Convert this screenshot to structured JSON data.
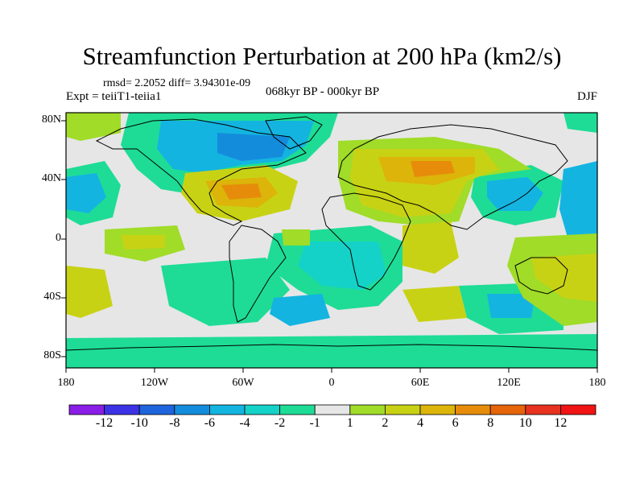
{
  "title": "Streamfunction Perturbation at 200 hPa (km2/s)",
  "stats": "rmsd= 2.2052 diff= 3.94301e-09",
  "expt": "Expt = teiiT1-teiia1",
  "period": "068kyr BP - 000kyr BP",
  "season": "DJF",
  "lat_labels": [
    "80N",
    "40N",
    "0",
    "40S",
    "80S"
  ],
  "lon_labels": [
    "180",
    "120W",
    "60W",
    "0",
    "60E",
    "120E",
    "180"
  ],
  "colorbar": {
    "labels": [
      "-12",
      "-10",
      "-8",
      "-6",
      "-4",
      "-2",
      "-1",
      "1",
      "2",
      "4",
      "6",
      "8",
      "10",
      "12"
    ],
    "colors": [
      "#8a1ee6",
      "#3c32e6",
      "#1e64dc",
      "#148cdc",
      "#14b4e1",
      "#14d2c8",
      "#1edc96",
      "#e6e6e6",
      "#a0dc28",
      "#c8d214",
      "#dcb40a",
      "#e68c0a",
      "#e6640a",
      "#e6321e",
      "#f01414"
    ]
  }
}
